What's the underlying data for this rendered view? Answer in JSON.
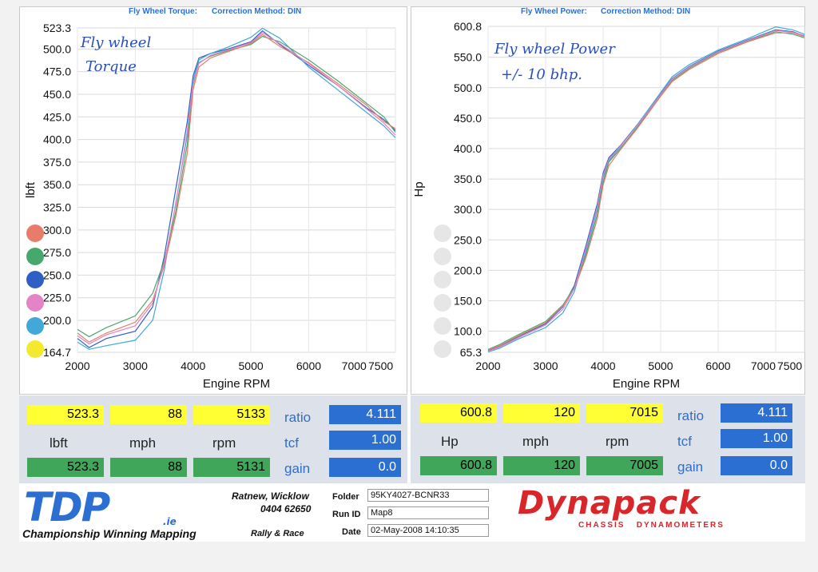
{
  "colors": {
    "panel_header": "#2a6fd1",
    "yellow": "#ffff33",
    "green": "#40a65a",
    "blue": "#2a6fd1",
    "brand_red": "#d8262b"
  },
  "left_panel": {
    "header_title": "Fly Wheel Torque:",
    "header_method": "Correction Method: DIN",
    "handwriting": [
      "Fly wheel",
      "Torque"
    ]
  },
  "right_panel": {
    "header_title": "Fly Wheel Power:",
    "header_method": "Correction Method: DIN",
    "handwriting": [
      "Fly wheel Power",
      "+/- 10 bhp."
    ]
  },
  "legend_dot_colors_left": [
    "#e77c6b",
    "#46a86b",
    "#2f5fc4",
    "#e483c6",
    "#40a9d7",
    "#f3ea2f"
  ],
  "legend_dot_colors_right": [
    "#e6e6e6",
    "#e6e6e6",
    "#e6e6e6",
    "#e6e6e6",
    "#e6e6e6",
    "#e6e6e6"
  ],
  "chart_data": [
    {
      "type": "line",
      "title": "",
      "xlabel": "Engine RPM",
      "ylabel": "lbft",
      "xlim": [
        2000,
        7500
      ],
      "ylim": [
        164.7,
        523.3
      ],
      "x_ticks": [
        "2000",
        "3000",
        "4000",
        "5000",
        "6000",
        "7000",
        "7500"
      ],
      "y_ticks": [
        "523.3",
        "500.0",
        "475.0",
        "450.0",
        "425.0",
        "400.0",
        "375.0",
        "350.0",
        "325.0",
        "300.0",
        "275.0",
        "250.0",
        "225.0",
        "200.0",
        "164.7"
      ],
      "y_tick_values": [
        523.3,
        500,
        475,
        450,
        425,
        400,
        375,
        350,
        325,
        300,
        275,
        250,
        225,
        200,
        164.7
      ],
      "x": [
        2000,
        2200,
        2500,
        3000,
        3300,
        3500,
        3700,
        3900,
        4000,
        4100,
        4300,
        4600,
        5000,
        5200,
        5500,
        6000,
        6500,
        7000,
        7300,
        7500
      ],
      "series": [
        {
          "color": "#2f5fc4",
          "values": [
            180,
            170,
            180,
            188,
            215,
            270,
            345,
            420,
            470,
            490,
            495,
            500,
            508,
            520,
            505,
            482,
            460,
            435,
            422,
            410
          ]
        },
        {
          "color": "#40a9d7",
          "values": [
            176,
            168,
            172,
            178,
            200,
            255,
            330,
            405,
            465,
            488,
            495,
            502,
            513,
            523,
            512,
            480,
            455,
            430,
            415,
            402
          ]
        },
        {
          "color": "#46a86b",
          "values": [
            190,
            182,
            192,
            205,
            230,
            265,
            320,
            395,
            460,
            485,
            492,
            498,
            505,
            514,
            508,
            488,
            465,
            440,
            425,
            408
          ]
        },
        {
          "color": "#e77c6b",
          "values": [
            186,
            176,
            186,
            198,
            222,
            260,
            315,
            385,
            455,
            480,
            490,
            497,
            506,
            516,
            503,
            485,
            462,
            438,
            420,
            412
          ]
        },
        {
          "color": "#e483c6",
          "values": [
            183,
            174,
            184,
            194,
            219,
            263,
            328,
            410,
            462,
            484,
            493,
            499,
            507,
            518,
            506,
            484,
            460,
            434,
            418,
            405
          ]
        }
      ]
    },
    {
      "type": "line",
      "title": "",
      "xlabel": "Engine RPM",
      "ylabel": "Hp",
      "xlim": [
        2000,
        7500
      ],
      "ylim": [
        65.3,
        600.8
      ],
      "x_ticks": [
        "2000",
        "3000",
        "4000",
        "5000",
        "6000",
        "7000",
        "7500"
      ],
      "y_ticks": [
        "600.8",
        "550.0",
        "500.0",
        "450.0",
        "400.0",
        "350.0",
        "300.0",
        "250.0",
        "200.0",
        "150.0",
        "100.0",
        "65.3"
      ],
      "y_tick_values": [
        600.8,
        550,
        500,
        450,
        400,
        350,
        300,
        250,
        200,
        150,
        100,
        65.3
      ],
      "x": [
        2000,
        2200,
        2500,
        3000,
        3300,
        3500,
        3700,
        3900,
        4000,
        4100,
        4300,
        4600,
        5000,
        5200,
        5500,
        6000,
        6500,
        7000,
        7300,
        7500
      ],
      "series": [
        {
          "color": "#2f5fc4",
          "values": [
            68,
            75,
            90,
            112,
            140,
            175,
            240,
            310,
            360,
            385,
            405,
            440,
            490,
            515,
            535,
            560,
            578,
            595,
            592,
            585
          ]
        },
        {
          "color": "#40a9d7",
          "values": [
            66,
            72,
            86,
            106,
            130,
            165,
            230,
            300,
            352,
            380,
            403,
            440,
            492,
            518,
            538,
            562,
            580,
            600,
            595,
            588
          ]
        },
        {
          "color": "#46a86b",
          "values": [
            70,
            78,
            93,
            116,
            143,
            172,
            225,
            292,
            345,
            378,
            400,
            436,
            488,
            512,
            532,
            558,
            576,
            592,
            588,
            582
          ]
        },
        {
          "color": "#e77c6b",
          "values": [
            69,
            76,
            91,
            114,
            141,
            170,
            220,
            285,
            340,
            372,
            398,
            434,
            486,
            510,
            530,
            556,
            575,
            590,
            590,
            584
          ]
        },
        {
          "color": "#e483c6",
          "values": [
            67,
            74,
            88,
            110,
            136,
            170,
            235,
            305,
            356,
            382,
            404,
            438,
            489,
            514,
            534,
            559,
            577,
            594,
            591,
            586
          ]
        }
      ]
    }
  ],
  "readouts": {
    "left": {
      "max_value": "523.3",
      "max_speed": "88",
      "max_rpm": "5133",
      "unit_value": "lbft",
      "unit_speed": "mph",
      "unit_rpm": "rpm",
      "gain_value": "523.3",
      "gain_speed": "88",
      "gain_rpm": "5131",
      "ratio_label": "ratio",
      "ratio_value": "4.111",
      "tcf_label": "tcf",
      "tcf_value": "1.00",
      "gain_label": "gain",
      "gain_amount": "0.0"
    },
    "right": {
      "max_value": "600.8",
      "max_speed": "120",
      "max_rpm": "7015",
      "unit_value": "Hp",
      "unit_speed": "mph",
      "unit_rpm": "rpm",
      "gain_value": "600.8",
      "gain_speed": "120",
      "gain_rpm": "7005",
      "ratio_label": "ratio",
      "ratio_value": "4.111",
      "tcf_label": "tcf",
      "tcf_value": "1.00",
      "gain_label": "gain",
      "gain_amount": "0.0"
    }
  },
  "footer": {
    "logo": "TDP",
    "logo_suffix": ".ie",
    "tagline": "Championship Winning Mapping",
    "subtag": "Rally & Race",
    "location": "Ratnew, Wicklow",
    "phone": "0404 62650",
    "folder_label": "Folder",
    "folder_value": "95KY4027-BCNR33",
    "runid_label": "Run ID",
    "runid_value": "Map8",
    "date_label": "Date",
    "date_value": "02-May-2008  14:10:35",
    "brand": "Dynapack",
    "brand_sub": "CHASSIS   DYNAMOMETERS"
  }
}
